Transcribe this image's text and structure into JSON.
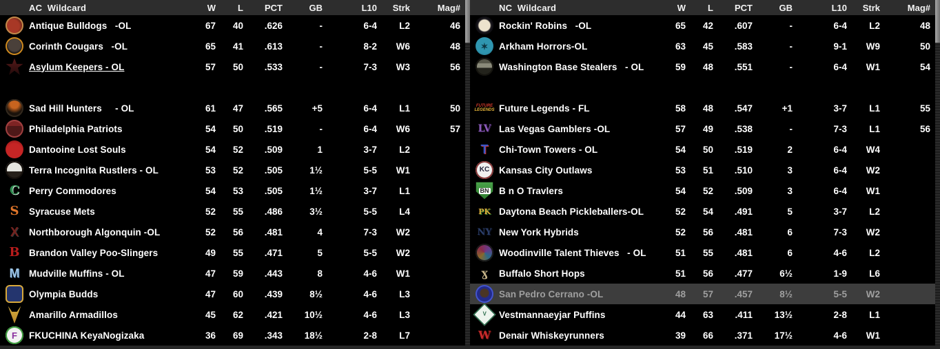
{
  "theme": {
    "header_bg": "#2d2d2d",
    "header_text": "#f2f2f2",
    "row_bg": "#000000",
    "row_text": "#ffffff",
    "highlight_bg": "#3d3d3d",
    "highlight_text": "#9f9f9f"
  },
  "columns": [
    "W",
    "L",
    "PCT",
    "GB",
    "L10",
    "Strk",
    "Mag#"
  ],
  "tables": [
    {
      "title": "AC  Wildcard",
      "rows": [
        {
          "name": "Antique Bulldogs   -OL",
          "w": "67",
          "l": "40",
          "pct": ".626",
          "gb": "-",
          "l10": "6-4",
          "strk": "L2",
          "mag": "46",
          "icon": {
            "name": "antique-bulldogs-logo",
            "shape": "circle",
            "bg": "radial-gradient(circle at 40% 55%, #a83826 0 45%, #5e2014 75%)",
            "ring": "#c08a4a"
          }
        },
        {
          "name": "Corinth Cougars   -OL",
          "w": "65",
          "l": "41",
          "pct": ".613",
          "gb": "-",
          "l10": "8-2",
          "strk": "W6",
          "mag": "48",
          "icon": {
            "name": "corinth-cougars-logo",
            "shape": "circle",
            "bg": "radial-gradient(circle at 50% 45%, #4a403a 0 45%, #131110 62%)",
            "ring": "#cf8a1f"
          }
        },
        {
          "name": "Asylum Keepers - OL",
          "underline": true,
          "w": "57",
          "l": "50",
          "pct": ".533",
          "gb": "-",
          "l10": "7-3",
          "strk": "W3",
          "mag": "56",
          "icon": {
            "name": "asylum-keepers-logo",
            "shape": "star",
            "bg": "linear-gradient(180deg,#5a1a1a,#200a0a)"
          }
        },
        {
          "name": "Sad Hill Hunters     - OL",
          "gap_before": true,
          "w": "61",
          "l": "47",
          "pct": ".565",
          "gb": "+5",
          "l10": "6-4",
          "strk": "L1",
          "mag": "50",
          "icon": {
            "name": "sad-hill-hunters-logo",
            "shape": "circle",
            "bg": "radial-gradient(circle at 50% 28%, #c8641f 0 26%, #1a120b 58%)",
            "ring": "#33291e"
          }
        },
        {
          "name": "Philadelphia Patriots",
          "w": "54",
          "l": "50",
          "pct": ".519",
          "gb": "-",
          "l10": "6-4",
          "strk": "W6",
          "mag": "57",
          "icon": {
            "name": "philadelphia-patriots-logo",
            "shape": "circle",
            "bg": "linear-gradient(180deg,#7e2424 0 35%, #4e1818 35%)",
            "ring": "#a04040"
          }
        },
        {
          "name": "Dantooine Lost Souls",
          "w": "54",
          "l": "52",
          "pct": ".509",
          "gb": "1",
          "l10": "3-7",
          "strk": "L2",
          "mag": "",
          "icon": {
            "name": "dantooine-lost-souls-logo",
            "shape": "circle",
            "bg": "radial-gradient(circle at 50% 62%, #c62525 0 55%, #871111 100%)"
          }
        },
        {
          "name": "Terra Incognita Rustlers - OL",
          "w": "53",
          "l": "52",
          "pct": ".505",
          "gb": "1½",
          "l10": "5-5",
          "strk": "W1",
          "mag": "",
          "icon": {
            "name": "terra-incognita-rustlers-logo",
            "shape": "circle",
            "bg": "linear-gradient(180deg,#e5e5e0 0 58%, #26201a 58%)",
            "ring": "#15100c"
          }
        },
        {
          "name": "Perry Commodores",
          "w": "54",
          "l": "53",
          "pct": ".505",
          "gb": "1½",
          "l10": "3-7",
          "strk": "L1",
          "mag": "",
          "icon": {
            "name": "perry-commodores-logo",
            "label": "C",
            "fg": "#2e8b4f",
            "size": 18,
            "serif": true,
            "shadow": "#cfe8d8"
          }
        },
        {
          "name": "Syracuse Mets",
          "w": "52",
          "l": "55",
          "pct": ".486",
          "gb": "3½",
          "l10": "5-5",
          "strk": "L4",
          "mag": "",
          "icon": {
            "name": "syracuse-mets-logo",
            "label": "S",
            "fg": "#e0762a",
            "size": 18,
            "serif": true
          }
        },
        {
          "name": "Northborough Algonquin -OL",
          "w": "52",
          "l": "56",
          "pct": ".481",
          "gb": "4",
          "l10": "7-3",
          "strk": "W2",
          "mag": "",
          "icon": {
            "name": "northborough-algonquin-logo",
            "label": "X",
            "fg": "#75221e",
            "size": 18,
            "shadow": "#3a3a3a"
          }
        },
        {
          "name": "Brandon Valley Poo-Slingers",
          "w": "49",
          "l": "55",
          "pct": ".471",
          "gb": "5",
          "l10": "5-5",
          "strk": "W2",
          "mag": "",
          "icon": {
            "name": "brandon-valley-poo-slingers-logo",
            "label": "B",
            "fg": "#b81c1c",
            "size": 18,
            "serif": true
          }
        },
        {
          "name": "Mudville Muffins - OL",
          "w": "47",
          "l": "59",
          "pct": ".443",
          "gb": "8",
          "l10": "4-6",
          "strk": "W1",
          "mag": "",
          "icon": {
            "name": "mudville-muffins-logo",
            "label": "M",
            "fg": "#9ec7e8",
            "size": 18,
            "shadow": "#2a4a6a"
          }
        },
        {
          "name": "Olympia Budds",
          "w": "47",
          "l": "60",
          "pct": ".439",
          "gb": "8½",
          "l10": "4-6",
          "strk": "L3",
          "mag": "",
          "icon": {
            "name": "olympia-budds-logo",
            "shape": "rounded",
            "bg": "#24356e",
            "ring": "#d9a93a"
          }
        },
        {
          "name": "Amarillo Armadillos",
          "w": "45",
          "l": "62",
          "pct": ".421",
          "gb": "10½",
          "l10": "4-6",
          "strk": "L3",
          "mag": "",
          "icon": {
            "name": "amarillo-armadillos-logo",
            "shape": "ears",
            "bg": "linear-gradient(180deg,#d9b13f,#b8862a)"
          }
        },
        {
          "name": "FKUCHINA KeyaNogizaka",
          "w": "36",
          "l": "69",
          "pct": ".343",
          "gb": "18½",
          "l10": "2-8",
          "strk": "L7",
          "mag": "",
          "icon": {
            "name": "fkuchina-keyanogizaka-logo",
            "shape": "circle",
            "bg": "#f2f2f2",
            "ring": "#3a9a3a",
            "label": "F",
            "fg": "#8a2f9e",
            "size": 13
          }
        }
      ]
    },
    {
      "title": "NC  Wildcard",
      "rows": [
        {
          "name": "Rockin' Robins   -OL",
          "w": "65",
          "l": "42",
          "pct": ".607",
          "gb": "-",
          "l10": "6-4",
          "strk": "L2",
          "mag": "48",
          "icon": {
            "name": "rockins-robins-logo",
            "shape": "circle",
            "bg": "radial-gradient(circle at 50% 50%, #ece3cd 0 44%, #1c1a20 52%)",
            "ring": "#0f0e12"
          }
        },
        {
          "name": "Arkham Horrors-OL",
          "w": "63",
          "l": "45",
          "pct": ".583",
          "gb": "-",
          "l10": "9-1",
          "strk": "W9",
          "mag": "50",
          "icon": {
            "name": "arkham-horrors-logo",
            "shape": "circle",
            "bg": "radial-gradient(circle at 50% 45%, #2f96b0 0 60%, #1c6276 100%)",
            "label": "✶",
            "fg": "#0d3642",
            "size": 13
          }
        },
        {
          "name": "Washington Base Stealers   - OL",
          "w": "59",
          "l": "48",
          "pct": ".551",
          "gb": "-",
          "l10": "6-4",
          "strk": "W1",
          "mag": "54",
          "icon": {
            "name": "washington-base-stealers-logo",
            "shape": "circle",
            "bg": "linear-gradient(180deg,#57574a 0 30%, #8a8a7a 30% 55%, #23231c 55%)",
            "ring": "#15140f"
          }
        },
        {
          "name": "Future Legends - FL",
          "gap_before": true,
          "w": "58",
          "l": "48",
          "pct": ".547",
          "gb": "+1",
          "l10": "3-7",
          "strk": "L1",
          "mag": "55",
          "icon": {
            "name": "future-legends-logo",
            "label": "FUTURE",
            "fg": "#d23a2a",
            "label2": "LEGENDS",
            "fg2": "#e8b63a",
            "size": 6,
            "italic": true
          }
        },
        {
          "name": "Las Vegas Gamblers -OL",
          "w": "57",
          "l": "49",
          "pct": ".538",
          "gb": "-",
          "l10": "7-3",
          "strk": "L1",
          "mag": "56",
          "icon": {
            "name": "las-vegas-gamblers-logo",
            "label": "LV",
            "fg": "#8a5ab8",
            "size": 14,
            "serif": true,
            "shadow": "#3a2052"
          }
        },
        {
          "name": "Chi-Town Towers - OL",
          "w": "54",
          "l": "50",
          "pct": ".519",
          "gb": "2",
          "l10": "6-4",
          "strk": "W4",
          "mag": "",
          "icon": {
            "name": "chi-town-towers-logo",
            "label": "T",
            "fg": "#3a55c8",
            "size": 18,
            "shadow": "#c93434"
          }
        },
        {
          "name": "Kansas City Outlaws",
          "w": "53",
          "l": "51",
          "pct": ".510",
          "gb": "3",
          "l10": "6-4",
          "strk": "W2",
          "mag": "",
          "icon": {
            "name": "kansas-city-outlaws-logo",
            "shape": "circle",
            "bg": "#f0f0f0",
            "ring": "#8a3a3a",
            "label": "KC",
            "fg": "#23233a",
            "size": 10
          }
        },
        {
          "name": "B n O Travlers",
          "w": "54",
          "l": "52",
          "pct": ".509",
          "gb": "3",
          "l10": "6-4",
          "strk": "W1",
          "mag": "",
          "icon": {
            "name": "b-n-o-travlers-logo",
            "shape": "plate",
            "bg": "linear-gradient(180deg,#4aa34a,#2e7a2e)",
            "label": "BN",
            "fg": "#222222",
            "size": 9,
            "box": true
          }
        },
        {
          "name": "Daytona Beach Pickleballers-OL",
          "w": "52",
          "l": "54",
          "pct": ".491",
          "gb": "5",
          "l10": "3-7",
          "strk": "L2",
          "mag": "",
          "icon": {
            "name": "daytona-beach-pickleballers-logo",
            "label": "PK",
            "fg": "#d9a93a",
            "size": 11,
            "serif": true,
            "shadow": "#2e7a2e"
          }
        },
        {
          "name": "New York Hybrids",
          "w": "52",
          "l": "56",
          "pct": ".481",
          "gb": "6",
          "l10": "7-3",
          "strk": "W2",
          "mag": "",
          "icon": {
            "name": "new-york-hybrids-logo",
            "label": "NY",
            "fg": "#2a3c66",
            "size": 13,
            "serif": true,
            "shadow": "#10182e"
          }
        },
        {
          "name": "Woodinville Talent Thieves   - OL",
          "w": "51",
          "l": "55",
          "pct": ".481",
          "gb": "6",
          "l10": "4-6",
          "strk": "L2",
          "mag": "",
          "icon": {
            "name": "woodinville-talent-thieves-logo",
            "shape": "circle",
            "bg": "conic-gradient(from 45deg, #6a3a8a, #2a6a8a, #8a6a2a, #8a2a4a, #6a3a8a)",
            "ring": "#1a1a1a"
          }
        },
        {
          "name": "Buffalo Short Hops",
          "w": "51",
          "l": "56",
          "pct": ".477",
          "gb": "6½",
          "l10": "1-9",
          "strk": "L6",
          "mag": "",
          "icon": {
            "name": "buffalo-short-hops-logo",
            "label": "ɣ",
            "fg": "#c9b68a",
            "size": 16,
            "serif": true
          }
        },
        {
          "name": "San Pedro Cerrano -OL",
          "highlight": true,
          "w": "48",
          "l": "57",
          "pct": ".457",
          "gb": "8½",
          "l10": "5-5",
          "strk": "W2",
          "mag": "",
          "icon": {
            "name": "san-pedro-cerrano-logo",
            "shape": "circle",
            "bg": "radial-gradient(circle at 50% 45%, #4a3525 0 30%, #222a8a 38% 100%)",
            "ring": "#4455cc"
          }
        },
        {
          "name": "Vestmannaeyjar Puffins",
          "w": "44",
          "l": "63",
          "pct": ".411",
          "gb": "13½",
          "l10": "2-8",
          "strk": "L1",
          "mag": "",
          "icon": {
            "name": "vestmannaeyjar-puffins-logo",
            "shape": "diamond",
            "bg": "#eef4ee",
            "ring": "#2a6a4a",
            "label": "V",
            "fg": "#2a6a4a",
            "size": 10
          }
        },
        {
          "name": "Denair Whiskeyrunners",
          "w": "39",
          "l": "66",
          "pct": ".371",
          "gb": "17½",
          "l10": "4-6",
          "strk": "W1",
          "mag": "",
          "icon": {
            "name": "denair-whiskeyrunners-logo",
            "label": "W",
            "fg": "#c62a2a",
            "size": 16,
            "serif": true,
            "shadow": "#6a1010"
          }
        }
      ]
    }
  ]
}
